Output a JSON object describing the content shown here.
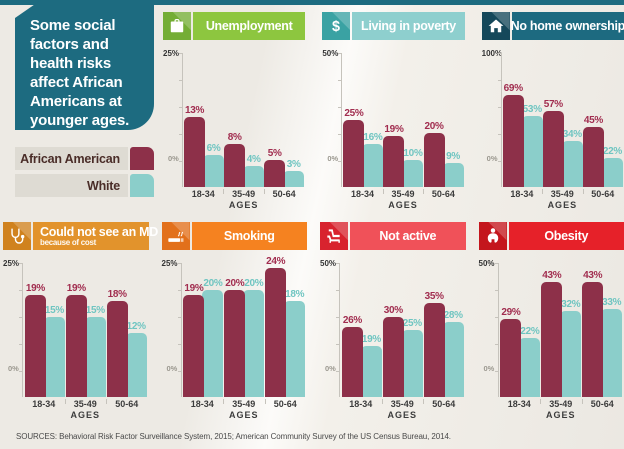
{
  "page": {
    "intro": "Some social factors and health risks affect African Americans at younger ages.",
    "sources": "SOURCES: Behavioral Risk Factor Surveillance System, 2015; American Community Survey of the US Census Bureau, 2014.",
    "background_color": "#eeebe5",
    "accent_strip_color": "#1d6b80",
    "intro_box_color": "#1d6b80"
  },
  "legend": {
    "items": [
      {
        "label": "African American",
        "color": "#8d3049"
      },
      {
        "label": "White",
        "color": "#8bceca"
      }
    ]
  },
  "series_colors": {
    "african_american": {
      "bar": "#8d3049",
      "label": "#a12d4f"
    },
    "white": {
      "bar": "#8bceca",
      "label": "#6fc5c1"
    }
  },
  "chart_data": [
    {
      "type": "bar",
      "row": "top",
      "title": "Unemployment",
      "subtitle": "",
      "icon": "briefcase-icon",
      "header_color": "#8dc63f",
      "icon_box_color": "#74ad35",
      "categories": [
        "18-34",
        "35-49",
        "50-64"
      ],
      "xlabel": "AGES",
      "ylim": [
        0,
        25
      ],
      "y_max_label": "25%",
      "y_min_label": "0%",
      "series": [
        {
          "name": "African American",
          "values": [
            13,
            8,
            5
          ]
        },
        {
          "name": "White",
          "values": [
            6,
            4,
            3
          ]
        }
      ]
    },
    {
      "type": "bar",
      "row": "top",
      "title": "Living in poverty",
      "subtitle": "",
      "icon": "dollar-icon",
      "header_color": "#8ecfce",
      "icon_box_color": "#3aa2a3",
      "categories": [
        "18-34",
        "35-49",
        "50-64"
      ],
      "xlabel": "AGES",
      "ylim": [
        0,
        50
      ],
      "y_max_label": "50%",
      "y_min_label": "0%",
      "series": [
        {
          "name": "African American",
          "values": [
            25,
            19,
            20
          ]
        },
        {
          "name": "White",
          "values": [
            16,
            10,
            9
          ]
        }
      ]
    },
    {
      "type": "bar",
      "row": "top",
      "title": "No home ownership",
      "subtitle": "",
      "icon": "house-icon",
      "header_color": "#1d6a80",
      "icon_box_color": "#15485a",
      "categories": [
        "18-34",
        "35-49",
        "50-64"
      ],
      "xlabel": "AGES",
      "ylim": [
        0,
        100
      ],
      "y_max_label": "100%",
      "y_min_label": "0%",
      "series": [
        {
          "name": "African American",
          "values": [
            69,
            57,
            45
          ]
        },
        {
          "name": "White",
          "values": [
            53,
            34,
            22
          ]
        }
      ]
    },
    {
      "type": "bar",
      "row": "bottom",
      "title": "Could not see an MD",
      "subtitle": "because of cost",
      "icon": "stethoscope-icon",
      "header_color": "#e2932c",
      "icon_box_color": "#d0821e",
      "categories": [
        "18-34",
        "35-49",
        "50-64"
      ],
      "xlabel": "AGES",
      "ylim": [
        0,
        25
      ],
      "y_max_label": "25%",
      "y_min_label": "0%",
      "series": [
        {
          "name": "African American",
          "values": [
            19,
            19,
            18
          ]
        },
        {
          "name": "White",
          "values": [
            15,
            15,
            12
          ]
        }
      ]
    },
    {
      "type": "bar",
      "row": "bottom",
      "title": "Smoking",
      "subtitle": "",
      "icon": "cigarette-icon",
      "header_color": "#f58220",
      "icon_box_color": "#e2701b",
      "categories": [
        "18-34",
        "35-49",
        "50-64"
      ],
      "xlabel": "AGES",
      "ylim": [
        0,
        25
      ],
      "y_max_label": "25%",
      "y_min_label": "0%",
      "series": [
        {
          "name": "African American",
          "values": [
            19,
            20,
            24
          ]
        },
        {
          "name": "White",
          "values": [
            20,
            20,
            18
          ]
        }
      ]
    },
    {
      "type": "bar",
      "row": "bottom",
      "title": "Not active",
      "subtitle": "",
      "icon": "recliner-icon",
      "header_color": "#f05159",
      "icon_box_color": "#d8232e",
      "categories": [
        "18-34",
        "35-49",
        "50-64"
      ],
      "xlabel": "AGES",
      "ylim": [
        0,
        50
      ],
      "y_max_label": "50%",
      "y_min_label": "0%",
      "series": [
        {
          "name": "African American",
          "values": [
            26,
            30,
            35
          ]
        },
        {
          "name": "White",
          "values": [
            19,
            25,
            28
          ]
        }
      ]
    },
    {
      "type": "bar",
      "row": "bottom",
      "title": "Obesity",
      "subtitle": "",
      "icon": "person-icon",
      "header_color": "#e62129",
      "icon_box_color": "#c4161d",
      "categories": [
        "18-34",
        "35-49",
        "50-64"
      ],
      "xlabel": "AGES",
      "ylim": [
        0,
        50
      ],
      "y_max_label": "50%",
      "y_min_label": "0%",
      "series": [
        {
          "name": "African American",
          "values": [
            29,
            43,
            43
          ]
        },
        {
          "name": "White",
          "values": [
            22,
            32,
            33
          ]
        }
      ]
    }
  ]
}
